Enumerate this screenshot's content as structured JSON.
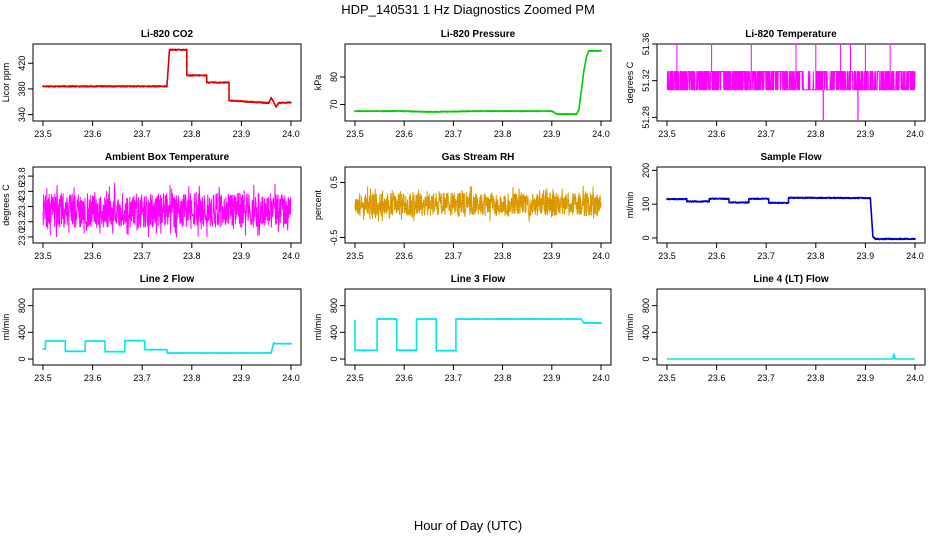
{
  "figure": {
    "title": "HDP_140531  1 Hz Diagnostics Zoomed PM",
    "xlabel": "Hour of Day (UTC)"
  },
  "chart_data": [
    {
      "type": "line",
      "title": "Li-820 CO2",
      "ylabel": "Licor ppm",
      "xlim": [
        23.5,
        24.0
      ],
      "ylim": [
        330,
        450
      ],
      "xticks": [
        23.5,
        23.6,
        23.7,
        23.8,
        23.9,
        24.0
      ],
      "yticks": [
        340,
        380,
        420
      ],
      "color": "#e00000",
      "noise": 0.8,
      "series": [
        {
          "x": [
            23.5,
            23.75,
            23.75,
            23.755,
            23.755,
            23.79,
            23.79,
            23.83,
            23.83,
            23.875,
            23.875,
            23.955,
            23.96,
            23.965,
            23.97,
            23.975,
            24.0
          ],
          "values": [
            384,
            384,
            386,
            441,
            441,
            441,
            401,
            401,
            390,
            390,
            362,
            358,
            366,
            360,
            352,
            358,
            359
          ]
        }
      ]
    },
    {
      "type": "line",
      "title": "Li-820 Pressure",
      "ylabel": "kPa",
      "xlim": [
        23.5,
        24.0
      ],
      "ylim": [
        64,
        92
      ],
      "xticks": [
        23.5,
        23.6,
        23.7,
        23.8,
        23.9,
        24.0
      ],
      "yticks": [
        70,
        80
      ],
      "color": "#00cc00",
      "noise": 0.12,
      "series": [
        {
          "x": [
            23.5,
            23.6,
            23.65,
            23.75,
            23.82,
            23.9,
            23.91,
            23.95,
            23.955,
            23.96,
            23.965,
            23.97,
            23.975,
            24.0
          ],
          "values": [
            67.6,
            67.6,
            67.3,
            67.6,
            67.6,
            67.6,
            66.5,
            66.5,
            68,
            75,
            82,
            87,
            89.5,
            89.5
          ]
        }
      ]
    },
    {
      "type": "line",
      "title": "Li-820 Temperature",
      "ylabel": "degrees C",
      "xlim": [
        23.5,
        24.0
      ],
      "ylim": [
        51.276,
        51.36
      ],
      "xticks": [
        23.5,
        23.6,
        23.7,
        23.8,
        23.9,
        24.0
      ],
      "yticks": [
        51.28,
        51.32,
        51.36
      ],
      "color": "#ff00ff",
      "style": "toggle",
      "levels": [
        51.31,
        51.33
      ],
      "spikes_high": [
        23.52,
        23.59,
        23.67,
        23.76,
        23.8,
        23.85,
        23.87,
        23.9,
        23.95
      ],
      "spikes_low": [
        23.815,
        23.885
      ]
    },
    {
      "type": "line",
      "title": "Ambient Box Temperature",
      "ylabel": "degrees C",
      "xlim": [
        23.5,
        24.0
      ],
      "ylim": [
        22.92,
        23.92
      ],
      "xticks": [
        23.5,
        23.6,
        23.7,
        23.8,
        23.9,
        24.0
      ],
      "yticks": [
        23.0,
        23.2,
        23.4,
        23.6,
        23.8
      ],
      "color": "#ff00ff",
      "style": "noise",
      "center": 23.35,
      "spread": 0.45
    },
    {
      "type": "line",
      "title": "Gas Stream RH",
      "ylabel": "percent",
      "xlim": [
        23.5,
        24.0
      ],
      "ylim": [
        -0.6,
        0.78
      ],
      "xticks": [
        23.5,
        23.6,
        23.7,
        23.8,
        23.9,
        24.0
      ],
      "yticks": [
        -0.5,
        0.5
      ],
      "color": "#e6a100",
      "style": "noise",
      "center": 0.1,
      "spread": 0.42
    },
    {
      "type": "line",
      "title": "Sample Flow",
      "ylabel": "ml/min",
      "xlim": [
        23.5,
        24.0
      ],
      "ylim": [
        -15,
        210
      ],
      "xticks": [
        23.5,
        23.6,
        23.7,
        23.8,
        23.9,
        24.0
      ],
      "yticks": [
        0,
        100,
        200
      ],
      "color": "#0000cc",
      "noise": 1.5,
      "series": [
        {
          "x": [
            23.5,
            23.54,
            23.54,
            23.585,
            23.585,
            23.625,
            23.625,
            23.665,
            23.665,
            23.705,
            23.705,
            23.745,
            23.745,
            23.91,
            23.915,
            23.92,
            24.0
          ],
          "values": [
            115,
            115,
            108,
            108,
            116,
            116,
            105,
            105,
            116,
            116,
            104,
            104,
            119,
            118,
            5,
            -3,
            -3
          ]
        }
      ]
    },
    {
      "type": "line",
      "title": "Line 2 Flow",
      "ylabel": "ml/min",
      "xlim": [
        23.5,
        24.0
      ],
      "ylim": [
        -90,
        1050
      ],
      "xticks": [
        23.5,
        23.6,
        23.7,
        23.8,
        23.9,
        24.0
      ],
      "yticks": [
        0,
        400,
        800
      ],
      "color": "#00e5ee",
      "noise": 3,
      "series": [
        {
          "x": [
            23.5,
            23.505,
            23.505,
            23.545,
            23.545,
            23.585,
            23.585,
            23.625,
            23.625,
            23.665,
            23.665,
            23.705,
            23.705,
            23.75,
            23.75,
            23.96,
            23.965,
            23.965,
            24.0
          ],
          "values": [
            150,
            150,
            270,
            270,
            115,
            115,
            270,
            270,
            110,
            110,
            275,
            275,
            140,
            140,
            90,
            90,
            240,
            230,
            230
          ]
        }
      ]
    },
    {
      "type": "line",
      "title": "Line 3 Flow",
      "ylabel": "ml/min",
      "xlim": [
        23.5,
        24.0
      ],
      "ylim": [
        -90,
        1050
      ],
      "xticks": [
        23.5,
        23.6,
        23.7,
        23.8,
        23.9,
        24.0
      ],
      "yticks": [
        0,
        400,
        800
      ],
      "color": "#00e5ee",
      "noise": 4,
      "series": [
        {
          "x": [
            23.5,
            23.5,
            23.545,
            23.545,
            23.585,
            23.585,
            23.625,
            23.625,
            23.665,
            23.665,
            23.705,
            23.705,
            23.96,
            23.965,
            24.0
          ],
          "values": [
            580,
            130,
            130,
            600,
            600,
            130,
            130,
            600,
            600,
            125,
            125,
            600,
            600,
            540,
            540
          ]
        }
      ]
    },
    {
      "type": "line",
      "title": "Line 4 (LT) Flow",
      "ylabel": "ml/min",
      "xlim": [
        23.5,
        24.0
      ],
      "ylim": [
        -90,
        1050
      ],
      "xticks": [
        23.5,
        23.6,
        23.7,
        23.8,
        23.9,
        24.0
      ],
      "yticks": [
        0,
        400,
        800
      ],
      "color": "#00e5ee",
      "noise": 0,
      "series": [
        {
          "x": [
            23.5,
            23.956,
            23.957,
            23.958,
            23.96,
            23.961,
            24.0
          ],
          "values": [
            0,
            0,
            70,
            70,
            0,
            0,
            0
          ]
        }
      ]
    }
  ]
}
